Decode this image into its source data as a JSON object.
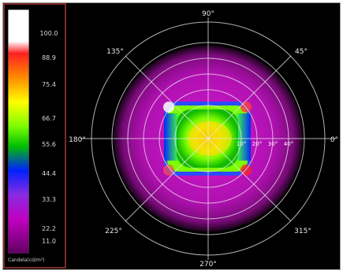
{
  "legend": {
    "ticks": [
      "100.0",
      "88.9",
      "75.4",
      "66.7",
      "55.6",
      "44.4",
      "33.3",
      "22.2",
      "11.0"
    ],
    "units": "Candela(cd/m²)",
    "colors": [
      "#ffffff",
      "#ff2020",
      "#ff8c00",
      "#ffff00",
      "#7cfc00",
      "#00c000",
      "#0020ff",
      "#8a2be2",
      "#c000c0",
      "#600060"
    ]
  },
  "polar": {
    "angle_labels": {
      "top": "90°",
      "top_right": "45°",
      "right": "0°",
      "bottom_right": "315°",
      "bottom": "270°",
      "bottom_left": "225°",
      "left": "180°",
      "top_left": "135°"
    },
    "ring_labels": [
      "10°",
      "20°",
      "30°",
      "40°"
    ]
  }
}
